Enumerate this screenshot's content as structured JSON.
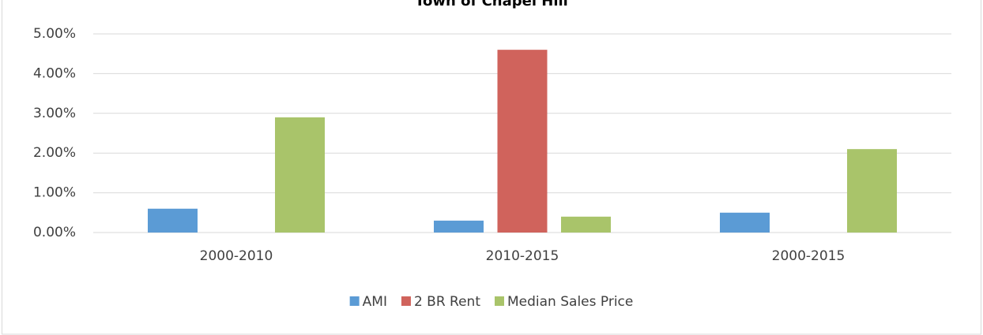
{
  "chart_data": {
    "type": "bar",
    "title": "Town of Chapel Hill",
    "categories": [
      "2000-2010",
      "2010-2015",
      "2000-2015"
    ],
    "series": [
      {
        "name": "AMI",
        "color": "#5b9bd5",
        "values": [
          0.6,
          0.3,
          0.5
        ]
      },
      {
        "name": "2 BR Rent",
        "color": "#d0635c",
        "values": [
          null,
          4.6,
          null
        ]
      },
      {
        "name": "Median Sales Price",
        "color": "#a9c46a",
        "values": [
          2.9,
          0.4,
          2.1
        ]
      }
    ],
    "ylim": [
      0,
      5
    ],
    "yticks": [
      {
        "value": 0,
        "label": "0.00%"
      },
      {
        "value": 1,
        "label": "1.00%"
      },
      {
        "value": 2,
        "label": "2.00%"
      },
      {
        "value": 3,
        "label": "3.00%"
      },
      {
        "value": 4,
        "label": "4.00%"
      },
      {
        "value": 5,
        "label": "5.00%"
      }
    ],
    "grid": true,
    "legend": "bottom"
  }
}
